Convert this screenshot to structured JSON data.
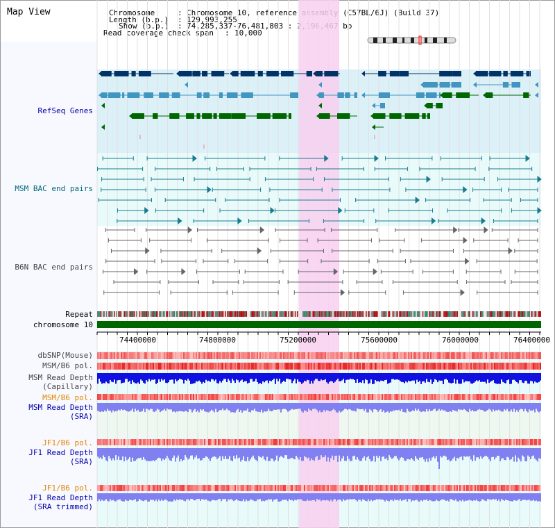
{
  "page": {
    "title": "Map View"
  },
  "header": {
    "rows": [
      {
        "key": "Chromosome",
        "sep": ":",
        "value": "Chromosome 10, reference assembly (C57BL/6J) (Build 37)"
      },
      {
        "key": "Length (b.p.)",
        "sep": ":",
        "value": "129,993,255"
      },
      {
        "key": "Show (b.p.)",
        "sep": ":",
        "value": "74,285,337-76,481,803 : 2,196,467 bp"
      },
      {
        "key": "Read coverage check span",
        "sep": ":",
        "value": "10,000"
      }
    ]
  },
  "tracks": {
    "refseq": "RefSeq Genes",
    "msm_bac": "MSM BAC end pairs",
    "b6n_bac": "B6N BAC end pairs",
    "repeat": "Repeat",
    "chromosome": "chromosome 10",
    "dbsnp": "dbSNP(Mouse)",
    "msm_b6_pol_1": "MSM/B6 pol.",
    "msm_read_depth_cap_1": "MSM Read Depth",
    "msm_read_depth_cap_2": "(Capillary)",
    "msm_b6_pol_2": "MSM/B6 pol.",
    "msm_read_depth_sra_1": "MSM Read Depth",
    "msm_read_depth_sra_2": "(SRA)",
    "jf1_b6_pol_1": "JF1/B6 pol.",
    "jf1_read_depth_sra_1": "JF1 Read Depth",
    "jf1_read_depth_sra_2": "(SRA)",
    "jf1_b6_pol_2": "JF1/B6 pol.",
    "jf1_read_depth_trim_1": "JF1 Read Depth",
    "jf1_read_depth_trim_2": "(SRA trimmed)"
  },
  "axis": {
    "ticks": [
      "74400000",
      "74800000",
      "75200000",
      "75600000",
      "76000000",
      "76400000"
    ]
  },
  "colors": {
    "refseq_bg": "#dcf0f8",
    "bac_bg": "#e8fafa",
    "highlight": "#f8d0f0",
    "chromosome": "#006600",
    "refseq_dark": "#003366",
    "refseq_mid": "#4096c0",
    "refseq_green": "#006600",
    "msm_bac": "#1a7a90",
    "b6n_bac": "#666666",
    "depth_capillary": "#1010e0",
    "depth_sra": "#8080f0"
  }
}
